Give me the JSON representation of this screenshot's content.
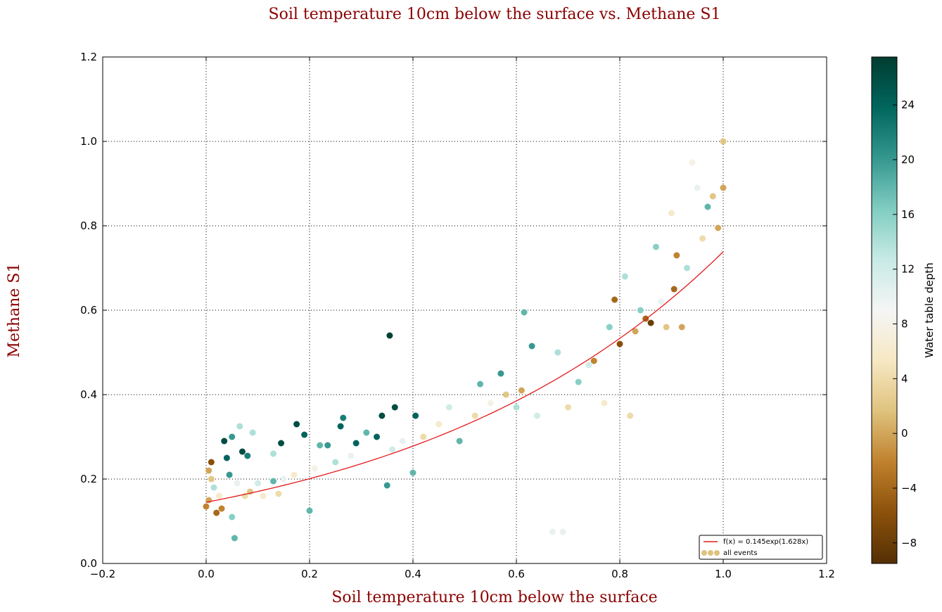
{
  "chart_data": {
    "type": "scatter",
    "title": "Soil temperature 10cm below the surface vs.  Methane S1",
    "xlabel": "Soil temperature 10cm below the surface",
    "ylabel": "Methane S1",
    "xlim": [
      -0.2,
      1.2
    ],
    "ylim": [
      0.0,
      1.2
    ],
    "x_ticks": [
      "−0.2",
      "0.0",
      "0.2",
      "0.4",
      "0.6",
      "0.8",
      "1.0",
      "1.2"
    ],
    "y_ticks": [
      "0.0",
      "0.2",
      "0.4",
      "0.6",
      "0.8",
      "1.0",
      "1.2"
    ],
    "grid": true,
    "legend_position": "bottom-right",
    "colorbar": {
      "label": "Water table depth",
      "range": [
        -9.5,
        27.5
      ],
      "ticks": [
        "−8",
        "−4",
        "0",
        "4",
        "8",
        "12",
        "16",
        "20",
        "24"
      ],
      "colormap": [
        "#543005",
        "#8c510a",
        "#bf812d",
        "#dfc27d",
        "#f6e8c3",
        "#f5f5f5",
        "#c7eae5",
        "#80cdc1",
        "#35978f",
        "#01665e",
        "#003c30"
      ]
    },
    "fit_line": {
      "name": "f(x) = 0.145exp(1.628x)",
      "a": 0.145,
      "b": 1.628,
      "x_range": [
        0.0,
        1.0
      ],
      "color": "#e31a1c"
    },
    "series": [
      {
        "name": "all events",
        "points": [
          [
            0.0,
            0.135,
            -2
          ],
          [
            0.005,
            0.15,
            0
          ],
          [
            0.01,
            0.24,
            -6
          ],
          [
            0.01,
            0.2,
            2
          ],
          [
            0.005,
            0.22,
            0
          ],
          [
            0.015,
            0.18,
            14
          ],
          [
            0.02,
            0.12,
            -4
          ],
          [
            0.025,
            0.16,
            6
          ],
          [
            0.03,
            0.13,
            -2
          ],
          [
            0.035,
            0.29,
            26
          ],
          [
            0.04,
            0.25,
            24
          ],
          [
            0.045,
            0.21,
            20
          ],
          [
            0.05,
            0.11,
            16
          ],
          [
            0.05,
            0.3,
            20
          ],
          [
            0.055,
            0.06,
            18
          ],
          [
            0.06,
            0.19,
            10
          ],
          [
            0.065,
            0.325,
            14
          ],
          [
            0.07,
            0.265,
            26
          ],
          [
            0.075,
            0.16,
            4
          ],
          [
            0.08,
            0.255,
            22
          ],
          [
            0.085,
            0.17,
            2
          ],
          [
            0.09,
            0.31,
            14
          ],
          [
            0.1,
            0.19,
            12
          ],
          [
            0.11,
            0.16,
            6
          ],
          [
            0.13,
            0.26,
            14
          ],
          [
            0.13,
            0.195,
            18
          ],
          [
            0.14,
            0.165,
            4
          ],
          [
            0.145,
            0.285,
            26
          ],
          [
            0.15,
            0.2,
            10
          ],
          [
            0.17,
            0.21,
            6
          ],
          [
            0.175,
            0.33,
            26
          ],
          [
            0.19,
            0.305,
            24
          ],
          [
            0.2,
            0.125,
            18
          ],
          [
            0.21,
            0.225,
            8
          ],
          [
            0.22,
            0.28,
            18
          ],
          [
            0.235,
            0.28,
            20
          ],
          [
            0.25,
            0.24,
            14
          ],
          [
            0.26,
            0.325,
            24
          ],
          [
            0.265,
            0.345,
            22
          ],
          [
            0.28,
            0.255,
            10
          ],
          [
            0.29,
            0.285,
            24
          ],
          [
            0.31,
            0.31,
            18
          ],
          [
            0.33,
            0.3,
            24
          ],
          [
            0.34,
            0.35,
            26
          ],
          [
            0.35,
            0.185,
            20
          ],
          [
            0.355,
            0.54,
            27
          ],
          [
            0.36,
            0.27,
            12
          ],
          [
            0.365,
            0.37,
            26
          ],
          [
            0.38,
            0.29,
            10
          ],
          [
            0.4,
            0.215,
            18
          ],
          [
            0.405,
            0.35,
            24
          ],
          [
            0.42,
            0.3,
            4
          ],
          [
            0.45,
            0.33,
            6
          ],
          [
            0.47,
            0.37,
            12
          ],
          [
            0.49,
            0.29,
            18
          ],
          [
            0.52,
            0.35,
            4
          ],
          [
            0.53,
            0.425,
            18
          ],
          [
            0.55,
            0.38,
            8
          ],
          [
            0.57,
            0.45,
            20
          ],
          [
            0.58,
            0.4,
            2
          ],
          [
            0.6,
            0.37,
            14
          ],
          [
            0.61,
            0.41,
            0
          ],
          [
            0.615,
            0.595,
            18
          ],
          [
            0.63,
            0.515,
            20
          ],
          [
            0.64,
            0.35,
            12
          ],
          [
            0.67,
            0.075,
            10
          ],
          [
            0.69,
            0.075,
            10
          ],
          [
            0.68,
            0.5,
            14
          ],
          [
            0.7,
            0.37,
            4
          ],
          [
            0.72,
            0.43,
            16
          ],
          [
            0.74,
            0.47,
            12
          ],
          [
            0.75,
            0.48,
            -2
          ],
          [
            0.77,
            0.38,
            6
          ],
          [
            0.78,
            0.56,
            16
          ],
          [
            0.79,
            0.625,
            -4
          ],
          [
            0.8,
            0.52,
            -6
          ],
          [
            0.81,
            0.68,
            14
          ],
          [
            0.82,
            0.35,
            4
          ],
          [
            0.83,
            0.55,
            0
          ],
          [
            0.84,
            0.6,
            16
          ],
          [
            0.85,
            0.58,
            -4
          ],
          [
            0.86,
            0.57,
            -8
          ],
          [
            0.87,
            0.75,
            16
          ],
          [
            0.88,
            0.62,
            10
          ],
          [
            0.89,
            0.56,
            2
          ],
          [
            0.9,
            0.83,
            6
          ],
          [
            0.905,
            0.65,
            -4
          ],
          [
            0.91,
            0.73,
            -2
          ],
          [
            0.92,
            0.56,
            0
          ],
          [
            0.93,
            0.7,
            14
          ],
          [
            0.94,
            0.95,
            8
          ],
          [
            0.95,
            0.89,
            10
          ],
          [
            0.96,
            0.77,
            4
          ],
          [
            0.97,
            0.845,
            18
          ],
          [
            0.98,
            0.87,
            2
          ],
          [
            0.99,
            0.795,
            0
          ],
          [
            1.0,
            1.0,
            2
          ],
          [
            1.0,
            0.89,
            0
          ]
        ]
      }
    ]
  }
}
